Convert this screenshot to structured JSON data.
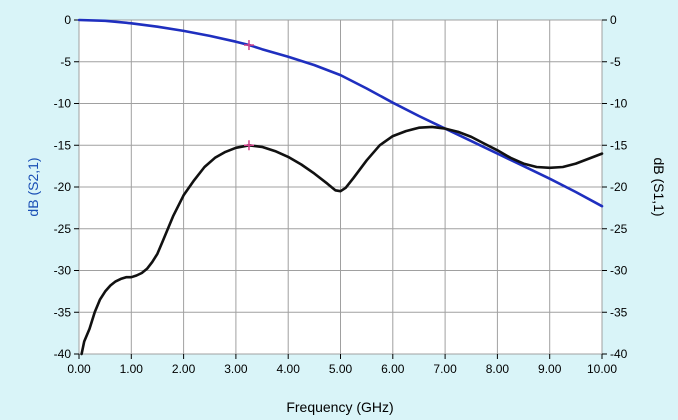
{
  "chart_data": {
    "type": "line",
    "xlabel": "Frequency (GHz)",
    "ylabel_left": "dB (S2,1)",
    "ylabel_right": "dB (S1,1)",
    "xlim": [
      0,
      10
    ],
    "ylim": [
      -40,
      0
    ],
    "grid": true,
    "colors": {
      "background": "#d9f4f8",
      "plot": "#ffffff",
      "grid": "#a0a0a0",
      "left_axis_label": "#1a4fb5"
    },
    "x_ticks": [
      0,
      1,
      2,
      3,
      4,
      5,
      6,
      7,
      8,
      9,
      10
    ],
    "x_tick_labels": [
      "0.00",
      "1.00",
      "2.00",
      "3.00",
      "4.00",
      "5.00",
      "6.00",
      "7.00",
      "8.00",
      "9.00",
      "10.00"
    ],
    "y_ticks": [
      0,
      -5,
      -10,
      -15,
      -20,
      -25,
      -30,
      -35,
      -40
    ],
    "y_tick_labels_left": [
      "0",
      "-5",
      "-10",
      "-15",
      "-20",
      "-25",
      "-30",
      "-35",
      "-40"
    ],
    "y_tick_labels_right": [
      "0",
      "-5",
      "-10",
      "-15",
      "-20",
      "-25",
      "-30",
      "-35",
      "-40"
    ],
    "series": [
      {
        "axis": "left",
        "color": "#1f2fbf",
        "x": [
          0,
          0.5,
          1.0,
          1.5,
          2.0,
          2.5,
          3.0,
          3.25,
          3.5,
          4.0,
          4.5,
          5.0,
          5.5,
          6.0,
          6.5,
          7.0,
          7.5,
          8.0,
          8.5,
          9.0,
          9.5,
          10.0
        ],
        "y": [
          0,
          -0.1,
          -0.4,
          -0.8,
          -1.3,
          -1.9,
          -2.6,
          -3.0,
          -3.5,
          -4.4,
          -5.4,
          -6.6,
          -8.2,
          -9.9,
          -11.5,
          -13.0,
          -14.5,
          -16.0,
          -17.5,
          -19.0,
          -20.6,
          -22.3
        ]
      },
      {
        "axis": "right",
        "color": "#111111",
        "x": [
          0.05,
          0.1,
          0.2,
          0.3,
          0.4,
          0.5,
          0.6,
          0.7,
          0.8,
          0.9,
          1.0,
          1.1,
          1.2,
          1.3,
          1.4,
          1.5,
          1.6,
          1.8,
          2.0,
          2.2,
          2.4,
          2.6,
          2.8,
          3.0,
          3.25,
          3.5,
          3.75,
          4.0,
          4.25,
          4.5,
          4.75,
          4.9,
          5.0,
          5.1,
          5.25,
          5.5,
          5.75,
          6.0,
          6.25,
          6.5,
          6.75,
          7.0,
          7.25,
          7.5,
          7.75,
          8.0,
          8.25,
          8.5,
          8.75,
          9.0,
          9.25,
          9.5,
          9.75,
          10.0
        ],
        "y": [
          -40.0,
          -38.5,
          -37.0,
          -35.0,
          -33.5,
          -32.5,
          -31.8,
          -31.3,
          -31.0,
          -30.8,
          -30.8,
          -30.6,
          -30.3,
          -29.8,
          -29.0,
          -28.0,
          -26.5,
          -23.5,
          -21.0,
          -19.2,
          -17.6,
          -16.5,
          -15.8,
          -15.3,
          -15.0,
          -15.2,
          -15.7,
          -16.4,
          -17.3,
          -18.4,
          -19.6,
          -20.4,
          -20.5,
          -20.1,
          -18.9,
          -16.8,
          -15.0,
          -13.9,
          -13.3,
          -12.9,
          -12.8,
          -13.0,
          -13.4,
          -14.0,
          -14.8,
          -15.6,
          -16.5,
          -17.2,
          -17.6,
          -17.7,
          -17.6,
          -17.2,
          -16.6,
          -16.0
        ]
      }
    ],
    "markers": [
      {
        "x": 3.25,
        "y": -3.0,
        "color": "#d0408a"
      },
      {
        "x": 3.25,
        "y": -15.0,
        "color": "#d0408a"
      }
    ]
  }
}
